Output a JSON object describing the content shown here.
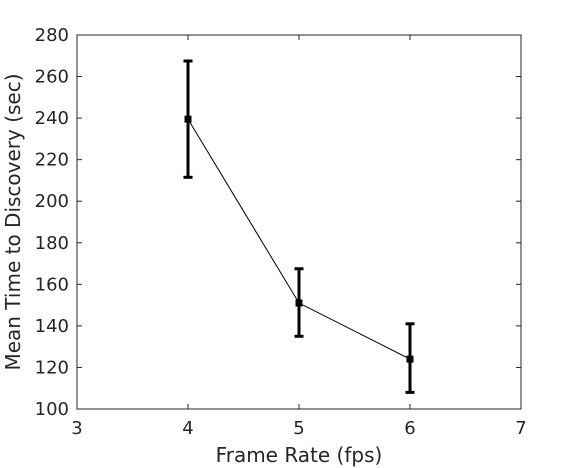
{
  "chart_data": {
    "type": "line",
    "title": "",
    "xlabel": "Frame Rate (fps)",
    "ylabel": "Mean Time to Discovery (sec)",
    "xlim": [
      3,
      7
    ],
    "ylim": [
      100,
      280
    ],
    "xticks": [
      3,
      4,
      5,
      6,
      7
    ],
    "yticks": [
      100,
      120,
      140,
      160,
      180,
      200,
      220,
      240,
      260,
      280
    ],
    "grid": false,
    "box": true,
    "series": [
      {
        "x": [
          4,
          5,
          6
        ],
        "y": [
          239.5,
          151,
          124
        ],
        "err_low": [
          211.5,
          135,
          108
        ],
        "err_high": [
          267.5,
          167.5,
          141
        ],
        "color": "#000000",
        "marker": "square"
      }
    ]
  }
}
